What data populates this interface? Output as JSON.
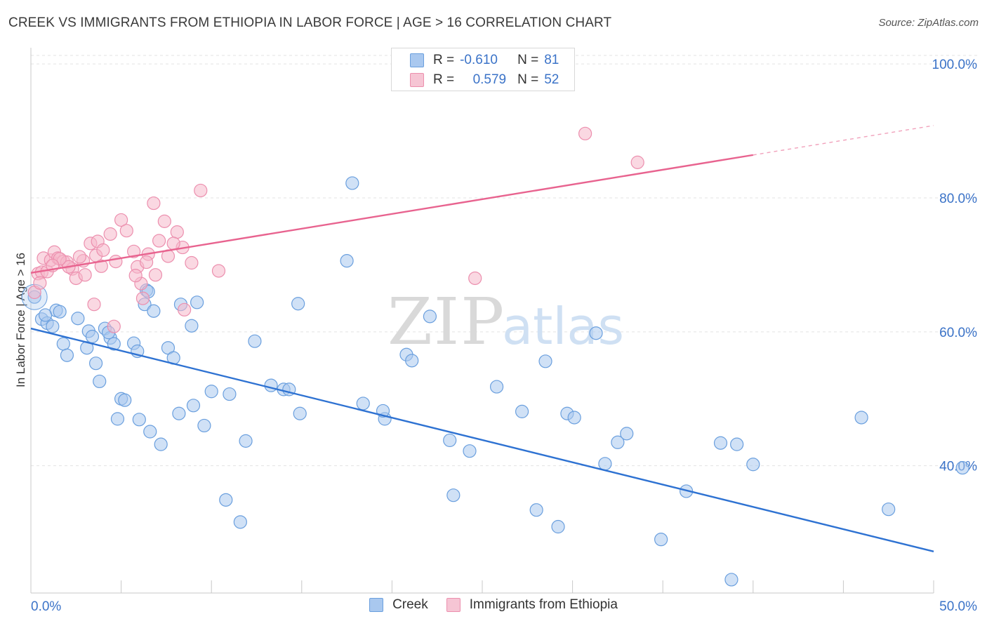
{
  "title": "CREEK VS IMMIGRANTS FROM ETHIOPIA IN LABOR FORCE | AGE > 16 CORRELATION CHART",
  "source": "Source: ZipAtlas.com",
  "watermark": {
    "zip": "ZIP",
    "atlas": "atlas"
  },
  "legend": {
    "r_label": "R =",
    "n_label": "N =",
    "series1": {
      "r": "-0.610",
      "n": "81"
    },
    "series2": {
      "r": "0.579",
      "n": "52"
    }
  },
  "bottom_legend": {
    "series1": "Creek",
    "series2": "Immigrants from Ethiopia"
  },
  "colors": {
    "creek_fill": "#a9c8ef",
    "creek_stroke": "#6a9fde",
    "creek_line": "#2e72d2",
    "eth_fill": "#f6b8cb",
    "eth_stroke": "#ec8fae",
    "eth_line": "#e8638f",
    "grid": "#e3e3e3",
    "axis_text": "#3b73c8"
  },
  "chart_data": {
    "type": "scatter",
    "title": "CREEK VS IMMIGRANTS FROM ETHIOPIA IN LABOR FORCE | AGE > 16 CORRELATION CHART",
    "xlabel": "",
    "ylabel": "In Labor Force | Age > 16",
    "xlim": [
      0,
      50
    ],
    "ylim": [
      21,
      102
    ],
    "x_tick_labels": [
      "0.0%",
      "50.0%"
    ],
    "y_ticks": [
      40,
      60,
      80,
      100
    ],
    "y_tick_labels": [
      "40.0%",
      "60.0%",
      "80.0%",
      "100.0%"
    ],
    "grid": true,
    "legend_position": "top-center",
    "series": [
      {
        "name": "Creek",
        "r": -0.61,
        "n": 81,
        "trend": {
          "x": [
            0,
            50
          ],
          "y": [
            60.5,
            27.2
          ],
          "dashed_from": null
        },
        "points": [
          [
            0.2,
            65.2
          ],
          [
            0.6,
            61.9
          ],
          [
            0.9,
            61.3
          ],
          [
            1.2,
            60.8
          ],
          [
            1.4,
            63.2
          ],
          [
            1.6,
            63.0
          ],
          [
            1.8,
            58.2
          ],
          [
            2.0,
            56.5
          ],
          [
            2.6,
            62.0
          ],
          [
            3.1,
            57.6
          ],
          [
            3.2,
            60.1
          ],
          [
            3.4,
            59.3
          ],
          [
            3.6,
            55.3
          ],
          [
            3.8,
            52.6
          ],
          [
            4.1,
            60.5
          ],
          [
            4.4,
            59.1
          ],
          [
            4.6,
            58.2
          ],
          [
            4.8,
            47.0
          ],
          [
            5.0,
            50.0
          ],
          [
            5.2,
            49.8
          ],
          [
            5.7,
            58.3
          ],
          [
            5.9,
            57.1
          ],
          [
            6.0,
            46.9
          ],
          [
            6.3,
            64.1
          ],
          [
            6.4,
            66.2
          ],
          [
            6.6,
            45.1
          ],
          [
            6.8,
            63.1
          ],
          [
            7.2,
            43.2
          ],
          [
            7.6,
            57.6
          ],
          [
            7.9,
            56.1
          ],
          [
            8.2,
            47.8
          ],
          [
            8.3,
            64.1
          ],
          [
            8.9,
            60.9
          ],
          [
            9.0,
            49.0
          ],
          [
            9.6,
            46.0
          ],
          [
            10.0,
            51.1
          ],
          [
            10.8,
            34.9
          ],
          [
            11.0,
            50.7
          ],
          [
            11.6,
            31.6
          ],
          [
            11.9,
            43.7
          ],
          [
            13.3,
            52.0
          ],
          [
            14.0,
            51.4
          ],
          [
            14.8,
            64.2
          ],
          [
            14.3,
            51.4
          ],
          [
            14.9,
            47.8
          ],
          [
            17.5,
            70.6
          ],
          [
            17.8,
            82.2
          ],
          [
            18.4,
            49.3
          ],
          [
            19.6,
            47.0
          ],
          [
            19.5,
            48.2
          ],
          [
            20.8,
            56.6
          ],
          [
            21.1,
            55.7
          ],
          [
            22.1,
            62.3
          ],
          [
            23.2,
            43.8
          ],
          [
            23.4,
            35.6
          ],
          [
            24.3,
            42.2
          ],
          [
            25.8,
            51.8
          ],
          [
            27.2,
            48.1
          ],
          [
            28.0,
            33.4
          ],
          [
            28.5,
            55.6
          ],
          [
            29.2,
            30.9
          ],
          [
            29.7,
            47.8
          ],
          [
            30.1,
            47.2
          ],
          [
            31.3,
            59.8
          ],
          [
            31.8,
            40.3
          ],
          [
            32.5,
            43.5
          ],
          [
            34.9,
            29.0
          ],
          [
            36.3,
            36.2
          ],
          [
            38.2,
            43.4
          ],
          [
            38.8,
            23.0
          ],
          [
            39.1,
            43.2
          ],
          [
            40.0,
            40.2
          ],
          [
            46.0,
            47.2
          ],
          [
            47.5,
            33.5
          ],
          [
            51.6,
            39.7
          ],
          [
            0.8,
            62.5
          ],
          [
            4.3,
            59.9
          ],
          [
            6.5,
            66.0
          ],
          [
            9.2,
            64.4
          ],
          [
            12.4,
            58.6
          ],
          [
            33.0,
            44.8
          ]
        ]
      },
      {
        "name": "Immigrants from Ethiopia",
        "r": 0.579,
        "n": 52,
        "trend": {
          "x": [
            0,
            50
          ],
          "y": [
            68.8,
            90.8
          ],
          "dashed_from": 40
        },
        "points": [
          [
            0.2,
            65.9
          ],
          [
            0.4,
            68.7
          ],
          [
            0.6,
            68.9
          ],
          [
            0.7,
            71.0
          ],
          [
            0.9,
            69.0
          ],
          [
            1.1,
            70.7
          ],
          [
            1.3,
            71.9
          ],
          [
            1.5,
            71.0
          ],
          [
            1.8,
            70.5
          ],
          [
            2.0,
            70.4
          ],
          [
            2.3,
            69.4
          ],
          [
            2.5,
            68.0
          ],
          [
            2.9,
            70.6
          ],
          [
            3.0,
            68.5
          ],
          [
            3.3,
            73.2
          ],
          [
            3.6,
            71.4
          ],
          [
            3.7,
            73.5
          ],
          [
            4.0,
            72.2
          ],
          [
            4.4,
            74.6
          ],
          [
            4.7,
            70.5
          ],
          [
            5.0,
            76.7
          ],
          [
            5.3,
            75.1
          ],
          [
            5.7,
            72.0
          ],
          [
            5.9,
            69.7
          ],
          [
            6.2,
            65.0
          ],
          [
            6.5,
            71.6
          ],
          [
            6.8,
            79.2
          ],
          [
            7.1,
            73.6
          ],
          [
            7.4,
            76.5
          ],
          [
            7.6,
            71.3
          ],
          [
            8.1,
            74.9
          ],
          [
            8.4,
            72.6
          ],
          [
            8.5,
            63.3
          ],
          [
            8.9,
            70.3
          ],
          [
            9.4,
            81.1
          ],
          [
            10.4,
            69.1
          ],
          [
            2.1,
            69.7
          ],
          [
            3.5,
            64.1
          ],
          [
            4.6,
            60.8
          ],
          [
            6.1,
            67.2
          ],
          [
            6.9,
            68.5
          ],
          [
            5.8,
            68.4
          ],
          [
            7.9,
            73.2
          ],
          [
            1.6,
            70.9
          ],
          [
            2.7,
            71.2
          ],
          [
            0.5,
            67.3
          ],
          [
            24.6,
            68.0
          ],
          [
            30.7,
            89.6
          ],
          [
            33.6,
            85.3
          ],
          [
            1.2,
            69.9
          ],
          [
            3.9,
            69.8
          ],
          [
            6.4,
            70.4
          ]
        ]
      }
    ]
  }
}
